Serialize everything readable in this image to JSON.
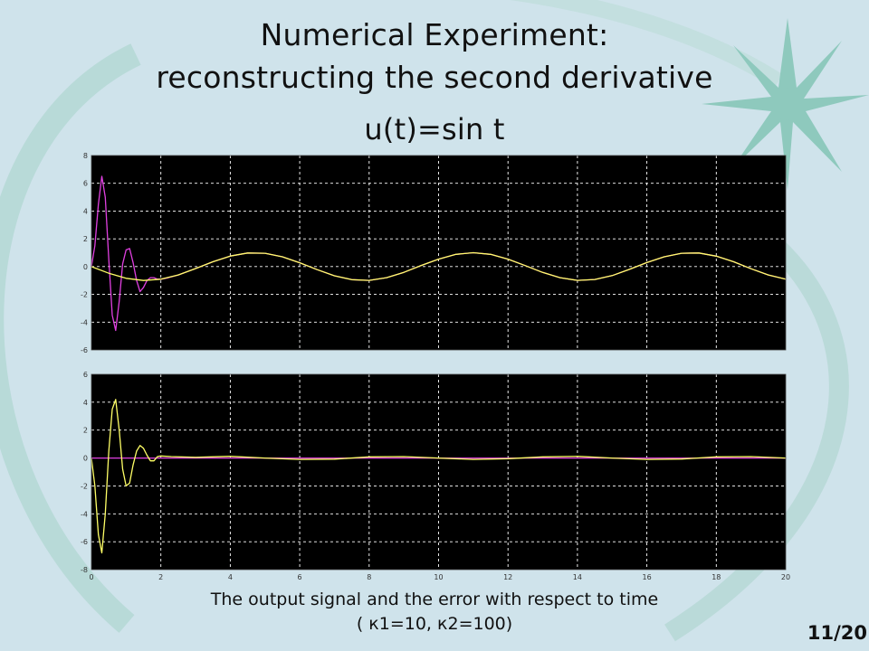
{
  "slide": {
    "title_line1": "Numerical Experiment:",
    "title_line2": "reconstructing the second derivative",
    "title_line3": "u(t)=sin t",
    "caption_line1": "The output signal and the error with respect to time",
    "caption_line2": "( к1=10, к2=100)",
    "page_number": "11/20",
    "background_color": "#cfe3eb",
    "decoration_color": "#8ec9bd"
  },
  "chart_data": [
    {
      "type": "line",
      "title": "",
      "xlabel": "",
      "ylabel": "",
      "xlim": [
        0,
        20
      ],
      "ylim": [
        -6,
        8
      ],
      "x_ticks": [],
      "y_ticks": [
        "8",
        "6",
        "4",
        "2",
        "0",
        "-2",
        "-4",
        "-6"
      ],
      "grid": true,
      "background": "#000000",
      "series": [
        {
          "color": "#e040e0",
          "x": [
            0,
            0.1,
            0.2,
            0.3,
            0.4,
            0.5,
            0.6,
            0.7,
            0.8,
            0.9,
            1.0,
            1.1,
            1.2,
            1.3,
            1.4,
            1.5,
            1.6,
            1.7,
            1.8,
            1.9,
            2.0,
            2.2,
            2.5,
            3,
            3.5,
            4,
            4.5,
            5,
            5.5,
            6,
            6.5,
            7,
            7.5,
            8,
            8.5,
            9,
            9.5,
            10,
            10.5,
            11,
            11.5,
            12,
            12.5,
            13,
            13.5,
            14,
            14.5,
            15,
            15.5,
            16,
            16.5,
            17,
            17.5,
            18,
            18.5,
            19,
            19.5,
            20
          ],
          "y": [
            0,
            1.5,
            4.5,
            6.5,
            5.0,
            0.5,
            -3.5,
            -4.6,
            -2.5,
            0.2,
            1.2,
            1.3,
            0.3,
            -1.0,
            -1.8,
            -1.5,
            -1.0,
            -0.8,
            -0.8,
            -0.9,
            -0.91,
            -0.81,
            -0.6,
            -0.14,
            0.35,
            0.76,
            0.98,
            0.96,
            0.71,
            0.28,
            -0.22,
            -0.66,
            -0.94,
            -0.99,
            -0.8,
            -0.41,
            0.08,
            0.54,
            0.88,
            1.0,
            0.88,
            0.54,
            0.07,
            -0.42,
            -0.8,
            -0.99,
            -0.93,
            -0.65,
            -0.2,
            0.29,
            0.71,
            0.96,
            0.98,
            0.75,
            0.35,
            -0.15,
            -0.6,
            -0.91
          ]
        },
        {
          "color": "#ffff66",
          "x": [
            0,
            0.5,
            1,
            1.5,
            2,
            2.5,
            3,
            3.5,
            4,
            4.5,
            5,
            5.5,
            6,
            6.5,
            7,
            7.5,
            8,
            8.5,
            9,
            9.5,
            10,
            10.5,
            11,
            11.5,
            12,
            12.5,
            13,
            13.5,
            14,
            14.5,
            15,
            15.5,
            16,
            16.5,
            17,
            17.5,
            18,
            18.5,
            19,
            19.5,
            20
          ],
          "y": [
            0,
            -0.48,
            -0.84,
            -1.0,
            -0.91,
            -0.6,
            -0.14,
            0.35,
            0.76,
            0.98,
            0.96,
            0.71,
            0.28,
            -0.22,
            -0.66,
            -0.94,
            -0.99,
            -0.8,
            -0.41,
            0.08,
            0.54,
            0.88,
            1.0,
            0.88,
            0.54,
            0.07,
            -0.42,
            -0.8,
            -0.99,
            -0.93,
            -0.65,
            -0.2,
            0.29,
            0.71,
            0.96,
            0.98,
            0.75,
            0.35,
            -0.15,
            -0.6,
            -0.91
          ]
        }
      ]
    },
    {
      "type": "line",
      "title": "",
      "xlabel": "",
      "ylabel": "",
      "xlim": [
        0,
        20
      ],
      "ylim": [
        -8,
        6
      ],
      "x_ticks": [
        "0",
        "2",
        "4",
        "6",
        "8",
        "10",
        "12",
        "14",
        "16",
        "18",
        "20"
      ],
      "y_ticks": [
        "6",
        "4",
        "2",
        "0",
        "-2",
        "-4",
        "-6",
        "-8"
      ],
      "grid": true,
      "background": "#000000",
      "series": [
        {
          "color": "#e040e0",
          "x": [
            0,
            20
          ],
          "y": [
            0,
            0
          ]
        },
        {
          "color": "#ffff66",
          "x": [
            0,
            0.1,
            0.2,
            0.3,
            0.4,
            0.5,
            0.6,
            0.7,
            0.8,
            0.9,
            1.0,
            1.1,
            1.2,
            1.3,
            1.4,
            1.5,
            1.6,
            1.7,
            1.8,
            1.9,
            2.0,
            2.3,
            3,
            4,
            5,
            6,
            7,
            8,
            9,
            10,
            11,
            12,
            13,
            14,
            15,
            16,
            17,
            18,
            19,
            20
          ],
          "y": [
            0,
            -2.0,
            -5.5,
            -6.8,
            -4.0,
            0.5,
            3.5,
            4.2,
            2.0,
            -0.8,
            -2.0,
            -1.8,
            -0.5,
            0.5,
            0.9,
            0.7,
            0.2,
            -0.2,
            -0.2,
            0.1,
            0.15,
            0.1,
            0.05,
            0.12,
            0.0,
            -0.1,
            -0.08,
            0.08,
            0.1,
            0.0,
            -0.1,
            -0.05,
            0.08,
            0.12,
            0.0,
            -0.1,
            -0.07,
            0.08,
            0.1,
            0.0
          ]
        }
      ]
    }
  ]
}
